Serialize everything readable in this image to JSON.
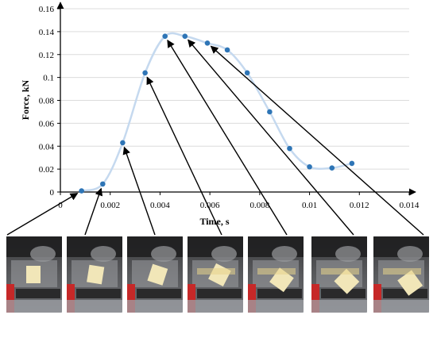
{
  "chart_data": {
    "type": "scatter",
    "xlabel": "Time, s",
    "ylabel": "Force, kN",
    "xlim": [
      0,
      0.014
    ],
    "ylim": [
      0,
      0.16
    ],
    "x_ticks": [
      "0",
      "0.002",
      "0.004",
      "0.006",
      "0.008",
      "0.01",
      "0.012",
      "0.014"
    ],
    "y_ticks": [
      "0",
      "0.02",
      "0.04",
      "0.06",
      "0.08",
      "0.1",
      "0.12",
      "0.14",
      "0.16"
    ],
    "grid": "horizontal",
    "series": [
      {
        "points": [
          {
            "x": 0.00085,
            "y": 0.001
          },
          {
            "x": 0.0017,
            "y": 0.007
          },
          {
            "x": 0.0025,
            "y": 0.043
          },
          {
            "x": 0.0034,
            "y": 0.104
          },
          {
            "x": 0.0042,
            "y": 0.136
          },
          {
            "x": 0.005,
            "y": 0.136
          },
          {
            "x": 0.0059,
            "y": 0.13
          },
          {
            "x": 0.0067,
            "y": 0.124
          },
          {
            "x": 0.0075,
            "y": 0.104
          },
          {
            "x": 0.0084,
            "y": 0.07
          },
          {
            "x": 0.0092,
            "y": 0.038
          },
          {
            "x": 0.01,
            "y": 0.022
          },
          {
            "x": 0.0109,
            "y": 0.021
          },
          {
            "x": 0.0117,
            "y": 0.025
          }
        ],
        "marker_color": "#2e75b6",
        "smooth_line_color": "#c5d9ef"
      }
    ],
    "annotation_arrows": [
      {
        "frame": 1,
        "point": 0
      },
      {
        "frame": 2,
        "point": 1
      },
      {
        "frame": 3,
        "point": 2
      },
      {
        "frame": 4,
        "point": 3
      },
      {
        "frame": 5,
        "point": 4
      },
      {
        "frame": 6,
        "point": 5
      },
      {
        "frame": 7,
        "point": 6
      }
    ]
  },
  "frames": [
    {
      "name": "frame-1",
      "photo": "high-speed-camera-frame"
    },
    {
      "name": "frame-2",
      "photo": "high-speed-camera-frame"
    },
    {
      "name": "frame-3",
      "photo": "high-speed-camera-frame"
    },
    {
      "name": "frame-4",
      "photo": "high-speed-camera-frame"
    },
    {
      "name": "frame-5",
      "photo": "high-speed-camera-frame"
    },
    {
      "name": "frame-6",
      "photo": "high-speed-camera-frame"
    },
    {
      "name": "frame-7",
      "photo": "high-speed-camera-frame"
    }
  ]
}
